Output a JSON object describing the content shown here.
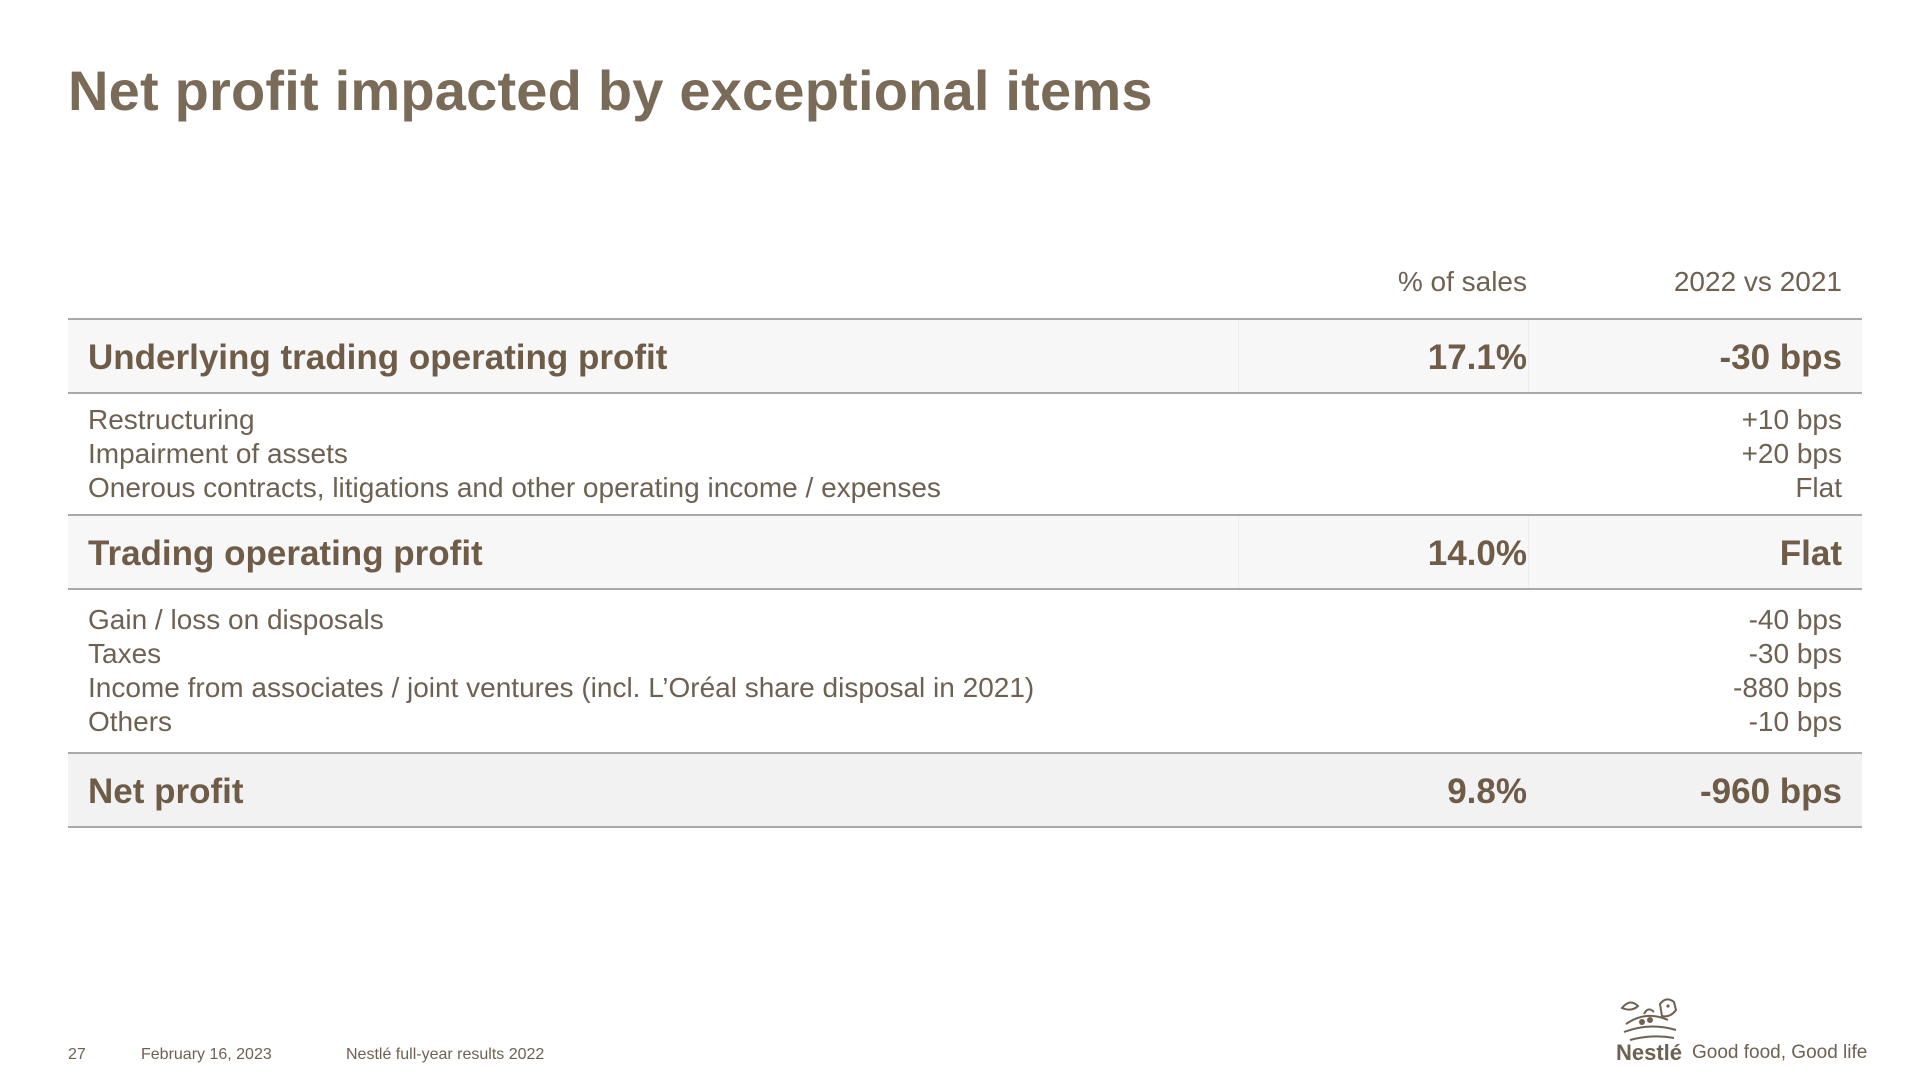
{
  "title": "Net profit impacted by exceptional items",
  "columns": {
    "pct_sales": "% of sales",
    "change": "2022 vs 2021"
  },
  "rows": {
    "underlying": {
      "label": "Underlying trading operating profit",
      "pct": "17.1%",
      "delta": "-30 bps"
    },
    "details1": [
      {
        "label": "Restructuring",
        "value": "+10 bps"
      },
      {
        "label": "Impairment of assets",
        "value": "+20 bps"
      },
      {
        "label": "Onerous contracts, litigations and other operating income / expenses",
        "value": "Flat"
      }
    ],
    "trading": {
      "label": "Trading operating profit",
      "pct": "14.0%",
      "delta": "Flat"
    },
    "details2": [
      {
        "label": "Gain / loss on disposals",
        "value": "-40 bps"
      },
      {
        "label": "Taxes",
        "value": "-30 bps"
      },
      {
        "label": "Income from associates / joint ventures (incl. L’Oréal share disposal in 2021)",
        "value": "-880 bps"
      },
      {
        "label": "Others",
        "value": "-10 bps"
      }
    ],
    "net": {
      "label": "Net profit",
      "pct": "9.8%",
      "delta": "-960 bps"
    }
  },
  "footer": {
    "page": "27",
    "date": "February 16, 2023",
    "doc": "Nestlé full-year results 2022",
    "brand": "Nestlé",
    "tagline": "Good food, Good life"
  },
  "colors": {
    "text": "#6e6152",
    "row_bg": "#f7f7f7",
    "rule": "#a9a9a9"
  }
}
